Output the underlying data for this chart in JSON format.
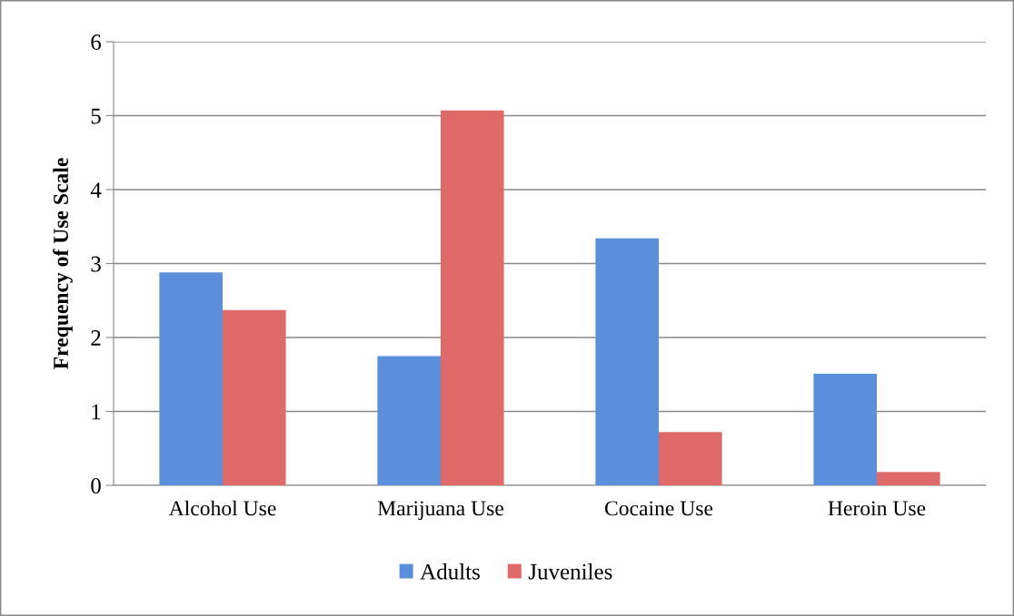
{
  "chart_data": {
    "type": "bar",
    "ylabel": "Frequency of Use Scale",
    "categories": [
      "Alcohol Use",
      "Marijuana Use",
      "Cocaine Use",
      "Heroin Use"
    ],
    "series": [
      {
        "name": "Adults",
        "color": "#5b8fdc",
        "values": [
          2.88,
          1.75,
          3.34,
          1.51
        ]
      },
      {
        "name": "Juveniles",
        "color": "#e06a6a",
        "values": [
          2.37,
          5.07,
          0.72,
          0.18
        ]
      }
    ],
    "ylim": [
      0,
      6
    ],
    "yticks": [
      0,
      1,
      2,
      3,
      4,
      5,
      6
    ],
    "grid": "y",
    "legend": "bottom"
  }
}
